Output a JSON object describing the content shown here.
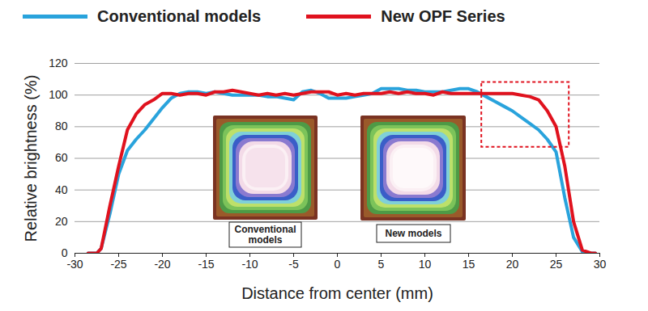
{
  "chart_data": {
    "type": "line",
    "x_label": "Distance from center (mm)",
    "y_label": "Relative brightness (%)",
    "x": [
      -28.5,
      -27.5,
      -27,
      -26,
      -25,
      -24,
      -23,
      -22,
      -21,
      -20,
      -19,
      -18,
      -17,
      -16,
      -15,
      -14,
      -13,
      -12,
      -11,
      -10,
      -9,
      -8,
      -7,
      -6,
      -5,
      -4,
      -3,
      -2,
      -1,
      0,
      1,
      2,
      3,
      4,
      5,
      6,
      7,
      8,
      9,
      10,
      11,
      12,
      13,
      14,
      15,
      16,
      17,
      18,
      19,
      20,
      21,
      22,
      23,
      24,
      25,
      26,
      27,
      28,
      29,
      29.5
    ],
    "series": [
      {
        "name": "Conventional models",
        "color": "#29a3dc",
        "values": [
          0,
          0,
          3,
          25,
          50,
          65,
          72,
          78,
          85,
          92,
          98,
          101,
          102,
          102,
          101,
          102,
          101,
          100,
          100,
          100,
          100,
          99,
          99,
          98,
          97,
          102,
          103,
          101,
          98,
          98,
          98,
          99,
          100,
          101,
          104,
          104,
          104,
          103,
          103,
          102,
          102,
          102,
          103,
          104,
          104,
          102,
          99,
          96,
          93,
          90,
          86,
          82,
          78,
          72,
          64,
          35,
          10,
          1,
          0,
          0
        ]
      },
      {
        "name": "New OPF Series",
        "color": "#e0121e",
        "values": [
          0,
          0,
          3,
          30,
          55,
          78,
          88,
          94,
          97,
          101,
          101,
          100,
          101,
          101,
          100,
          102,
          102,
          103,
          102,
          101,
          100,
          101,
          100,
          101,
          100,
          101,
          102,
          102,
          102,
          100,
          101,
          100,
          101,
          101,
          101,
          102,
          101,
          102,
          101,
          101,
          100,
          102,
          101,
          101,
          101,
          101,
          101,
          101,
          101,
          101,
          100,
          99,
          97,
          90,
          80,
          55,
          20,
          2,
          0,
          0
        ]
      }
    ],
    "xlim": [
      -30,
      30
    ],
    "xticks": [
      -30,
      -25,
      -20,
      -15,
      -10,
      -5,
      0,
      5,
      10,
      15,
      20,
      25,
      30
    ],
    "ylim": [
      0,
      120
    ],
    "yticks": [
      0,
      20,
      40,
      60,
      80,
      100,
      120
    ],
    "grid": true,
    "legend": "top",
    "highlight": {
      "x": [
        16.5,
        26.5
      ],
      "y": [
        67,
        108
      ]
    },
    "insets": [
      "Conventional models",
      "New models"
    ]
  }
}
